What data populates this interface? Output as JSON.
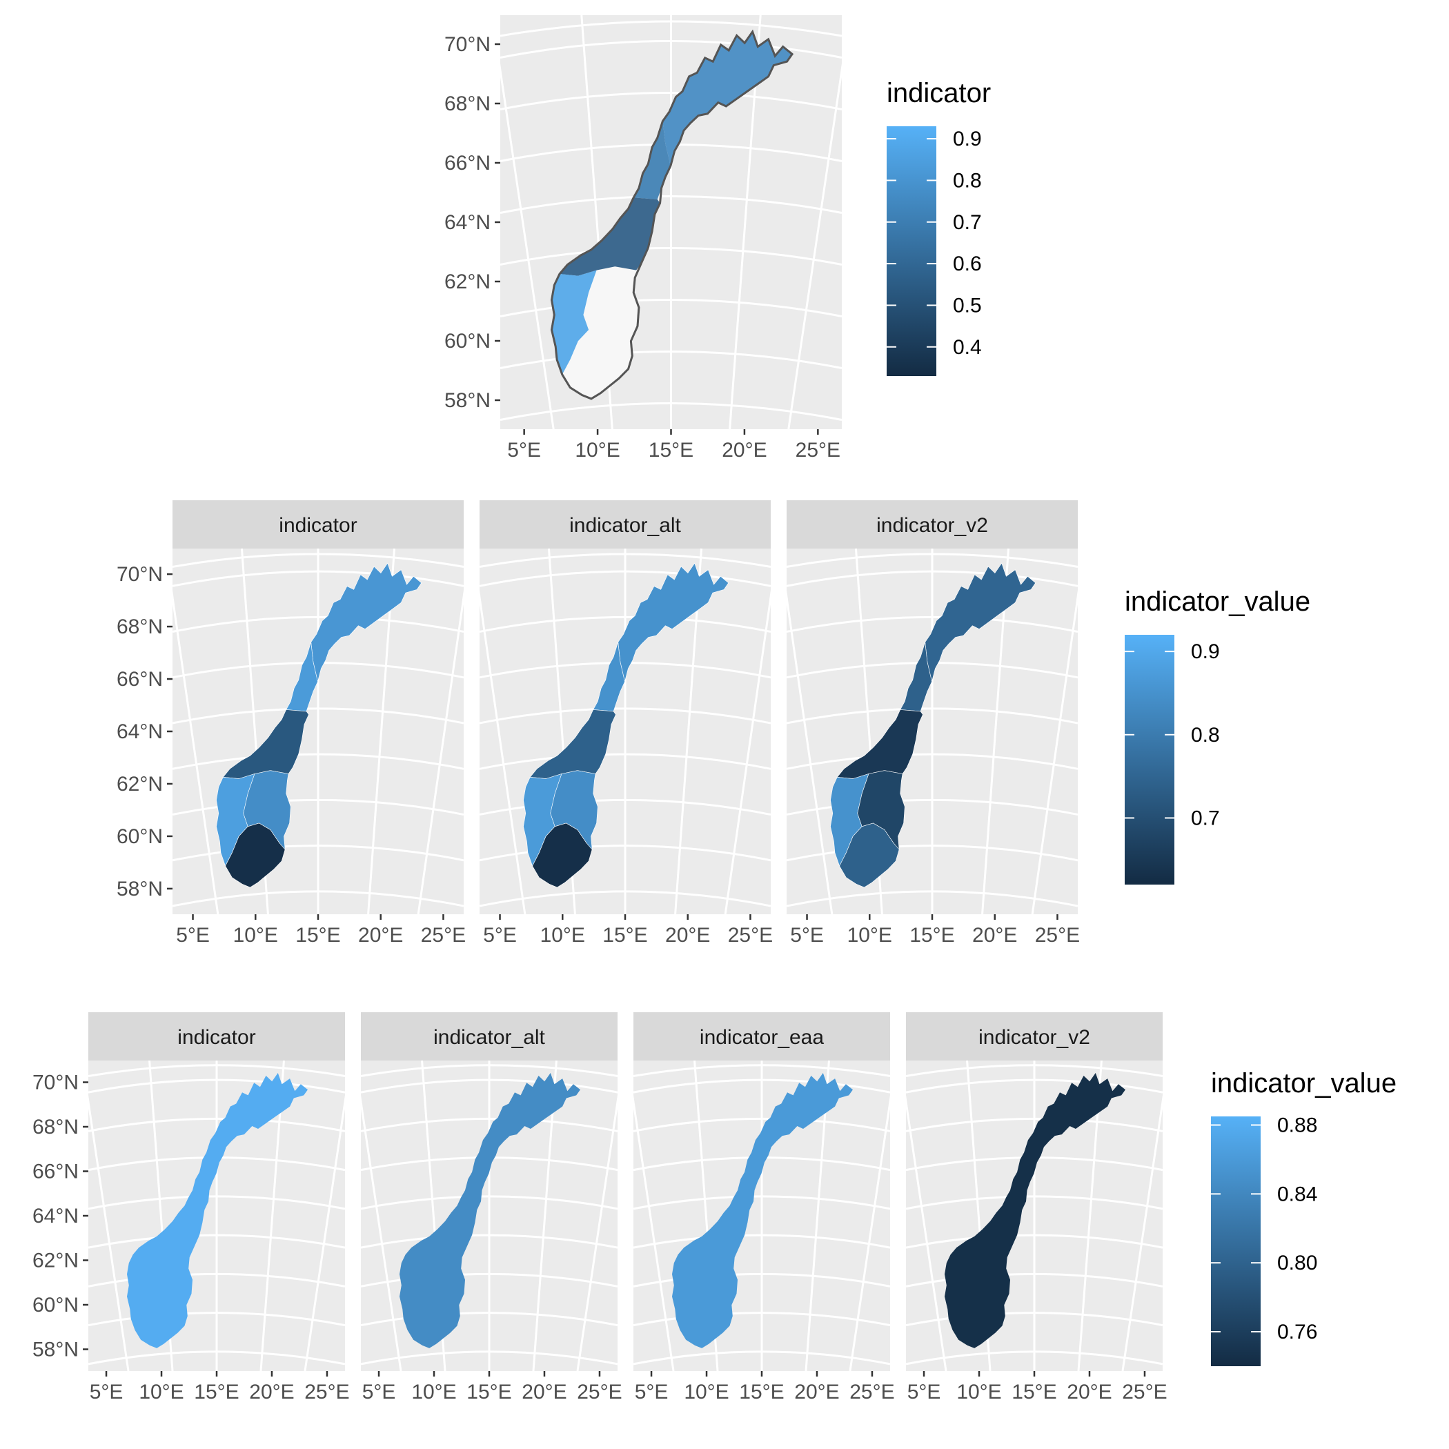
{
  "colors": {
    "panel_bg": "#ebebeb",
    "grid": "#ffffff",
    "strip_bg": "#d9d9d9",
    "tick_text": "#4d4d4d",
    "low": "#132b43",
    "high": "#56b1f7",
    "border": "#555555",
    "na_fill": "#f7f7f7"
  },
  "axes": {
    "lat_labels": [
      "70°N",
      "68°N",
      "66°N",
      "64°N",
      "62°N",
      "60°N",
      "58°N"
    ],
    "lon_labels": [
      "5°E",
      "10°E",
      "15°E",
      "20°E",
      "25°E"
    ]
  },
  "plots": [
    {
      "name": "single-indicator-map",
      "legend": {
        "title": "indicator",
        "breaks": [
          "0.9",
          "0.8",
          "0.7",
          "0.6",
          "0.5",
          "0.4"
        ],
        "range": [
          0.33,
          0.93
        ]
      },
      "panels": [
        {
          "strip": "",
          "style": "municipal"
        }
      ]
    },
    {
      "name": "three-indicator-facet",
      "legend": {
        "title": "indicator_value",
        "breaks": [
          "0.9",
          "0.8",
          "0.7"
        ],
        "range": [
          0.62,
          0.92
        ]
      },
      "panels": [
        {
          "strip": "indicator",
          "regions": {
            "north": 0.86,
            "northmid": 0.87,
            "mid": 0.72,
            "west": 0.88,
            "east": 0.84,
            "south": 0.63
          }
        },
        {
          "strip": "indicator_alt",
          "regions": {
            "north": 0.85,
            "northmid": 0.85,
            "mid": 0.74,
            "west": 0.87,
            "east": 0.84,
            "south": 0.63
          }
        },
        {
          "strip": "indicator_v2",
          "regions": {
            "north": 0.75,
            "northmid": 0.74,
            "mid": 0.65,
            "west": 0.85,
            "east": 0.68,
            "south": 0.74
          }
        }
      ]
    },
    {
      "name": "four-indicator-facet",
      "legend": {
        "title": "indicator_value",
        "breaks": [
          "0.88",
          "0.84",
          "0.80",
          "0.76"
        ],
        "range": [
          0.74,
          0.885
        ]
      },
      "panels": [
        {
          "strip": "indicator",
          "value": 0.88
        },
        {
          "strip": "indicator_alt",
          "value": 0.845
        },
        {
          "strip": "indicator_eaa",
          "value": 0.86
        },
        {
          "strip": "indicator_v2",
          "value": 0.745
        }
      ]
    }
  ]
}
